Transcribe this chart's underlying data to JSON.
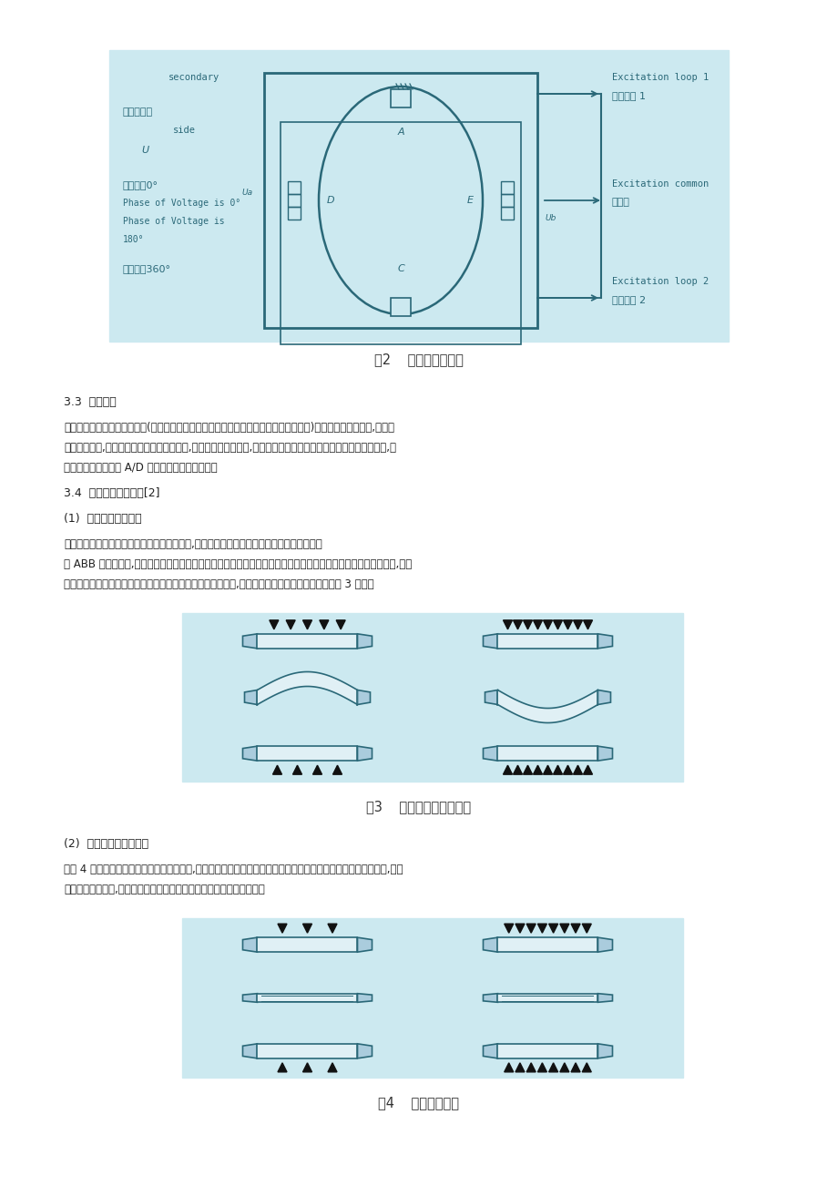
{
  "page_bg": "#ffffff",
  "fig_bg": "#cce9f0",
  "text_color": "#222222",
  "diagram_color": "#2a6878",
  "caption_color": "#333333",
  "arrow_color": "#111111",
  "body_fs": 8.5,
  "caption_fs": 10.5,
  "section_fs": 9.0,
  "fig2_caption": "图2    测量元件原理图",
  "fig3_caption": "图3    工作辗弯辗控制原理",
  "fig4_caption": "图4    倾斜控制原理",
  "s33_title": "3.3  励磁单元",
  "s33_b1": "励磁单元是采用三个碳刷供电(根据现场实际使用和维护经验来看碳刷是比较容易损坏的)并在一次侧产生磁场,通过卷",
  "s33_b2": "取机设定张力,那么板带就会对测量辗有压力,致使传感器产生形变,在形变的过程时切割了二次侧线圈从而产生电压,该",
  "s33_b3": "电压值是通过模块的 A/D 转换功能来进行测量的。",
  "s34_title": "3.4  板型闭环控制方式[2]",
  "s341_title": "(1)  工作辗的弯辗控制",
  "s341_b1": "通过调整工作辗的正负弯来改变工作辗的挠度,以达到消除带锂中间浪和两边浪缺陷的目的。",
  "s341_b2": "在 ABB 控制系统中,还把与带材厚度、宽度和材质有关的适应系数纳入控制计算内。对不同材质、不同的轧制规格,通过",
  "s341_b3": "对该三个适应系数的优化调整使弯辗调节量输出接近理想状态,调节效果达到最佳化。控制原理如图 3 所示。",
  "s342_title": "(2)  支撑辗倾斜压下控制",
  "s342_b1": "如图 4 所示通过控制支撑辗单侧压下的摇动,实际上就是为了消除或减小边浪而进行支撑辗单侧液压压下量的调整,同样",
  "s342_b2": "在系统控制程序中,考虑了与带锂规格和材质等有关的适应系数的调整。"
}
